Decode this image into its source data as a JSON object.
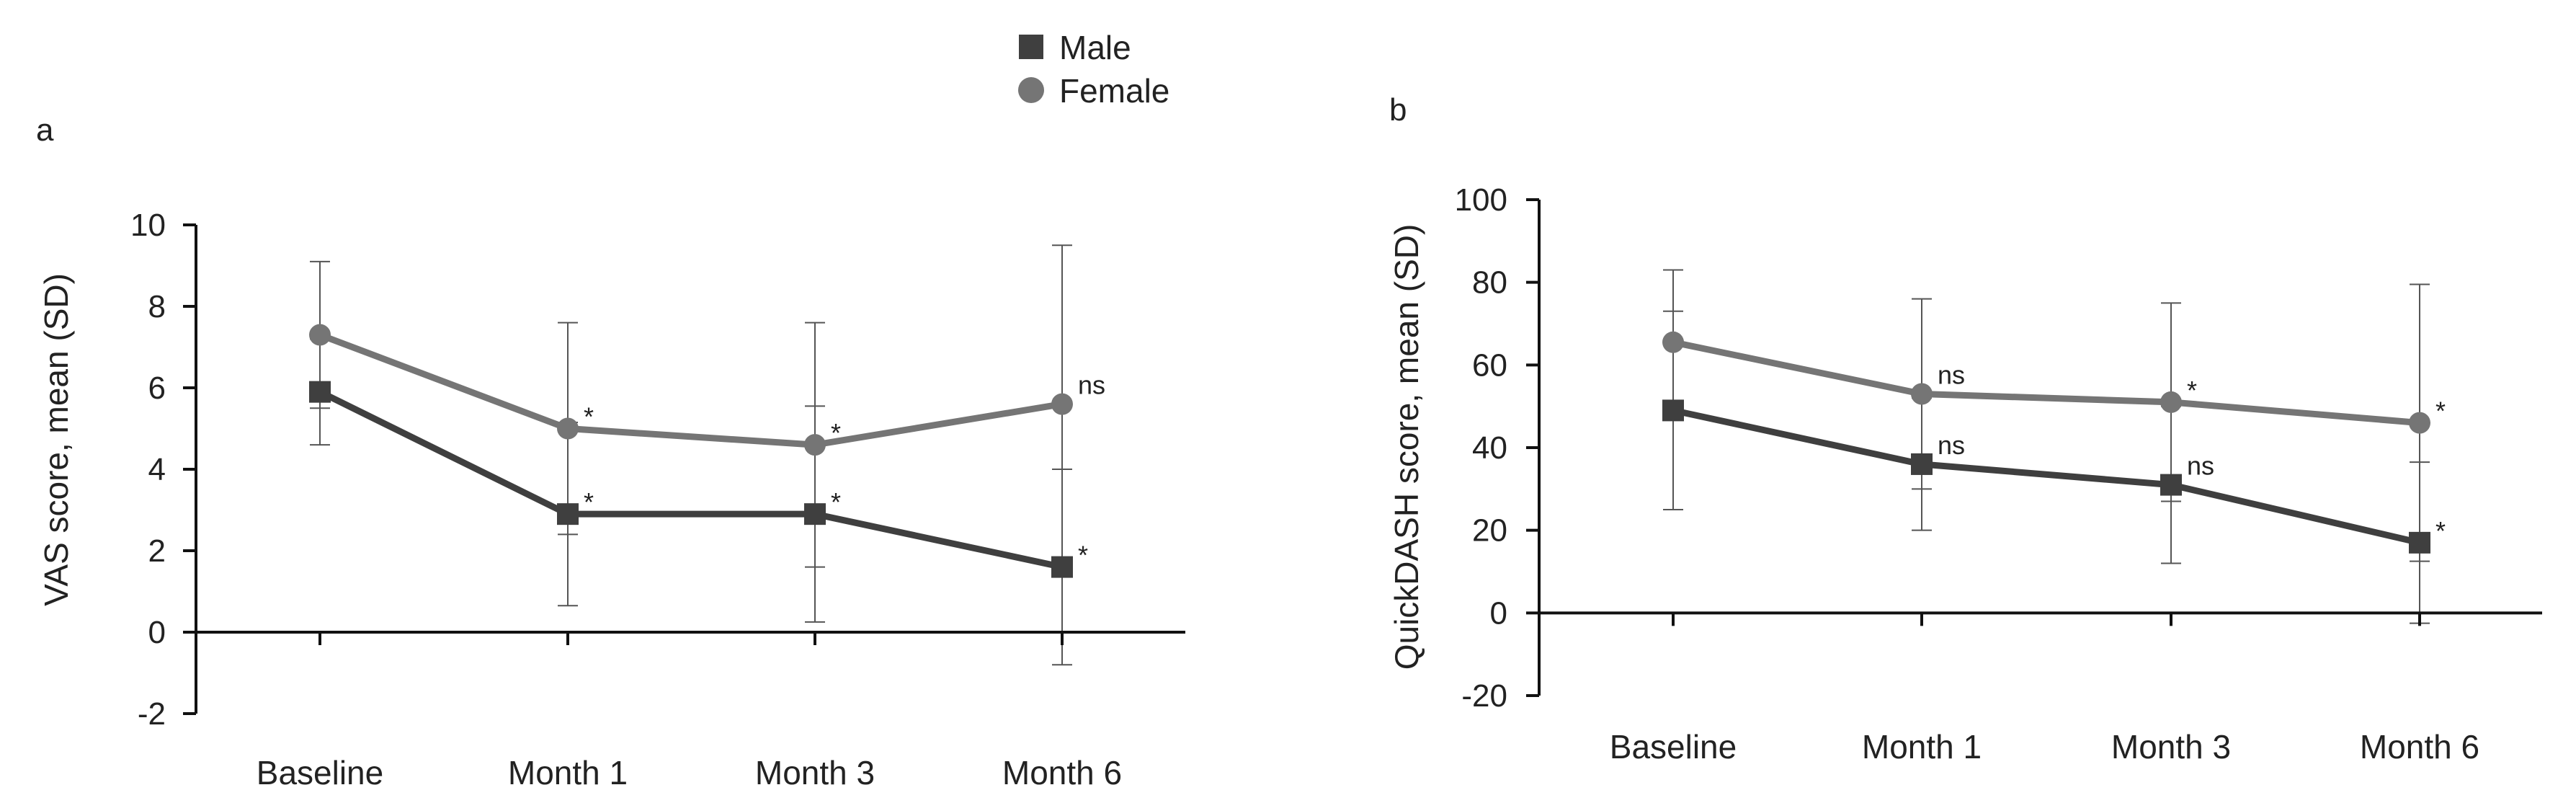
{
  "legend": {
    "items": [
      {
        "name": "Male",
        "marker": "square",
        "color": "#3f3f3f"
      },
      {
        "name": "Female",
        "marker": "circle",
        "color": "#757575"
      }
    ]
  },
  "chart_data": [
    {
      "panel": "a",
      "type": "line",
      "title": "",
      "xlabel": "",
      "ylabel": "VAS score, mean (SD)",
      "categories": [
        "Baseline",
        "Month 1",
        "Month 3",
        "Month 6"
      ],
      "ylim": [
        -2,
        10
      ],
      "yticks": [
        -2,
        0,
        2,
        4,
        6,
        8,
        10
      ],
      "grid": false,
      "legend_position": "top-center",
      "series": [
        {
          "name": "Male",
          "marker": "square",
          "color": "#3f3f3f",
          "values": [
            5.9,
            2.9,
            2.9,
            1.6
          ],
          "sd": [
            1.3,
            2.25,
            2.65,
            2.4
          ],
          "annotations": [
            "",
            "*",
            "*",
            "*"
          ]
        },
        {
          "name": "Female",
          "marker": "circle",
          "color": "#757575",
          "values": [
            7.3,
            5.0,
            4.6,
            5.6
          ],
          "sd": [
            1.8,
            2.6,
            3.0,
            3.9
          ],
          "annotations": [
            "",
            "*",
            "*",
            "ns"
          ]
        }
      ]
    },
    {
      "panel": "b",
      "type": "line",
      "title": "",
      "xlabel": "",
      "ylabel": "QuickDASH score, mean (SD)",
      "categories": [
        "Baseline",
        "Month 1",
        "Month 3",
        "Month 6"
      ],
      "ylim": [
        -20,
        100
      ],
      "yticks": [
        -20,
        0,
        20,
        40,
        60,
        80,
        100
      ],
      "grid": false,
      "legend_position": "top-center",
      "series": [
        {
          "name": "Male",
          "marker": "square",
          "color": "#3f3f3f",
          "values": [
            49,
            36,
            31,
            17
          ],
          "sd": [
            24,
            16,
            19,
            19.5
          ],
          "annotations": [
            "",
            "ns",
            "ns",
            "*"
          ]
        },
        {
          "name": "Female",
          "marker": "circle",
          "color": "#757575",
          "values": [
            65.5,
            53,
            51,
            46
          ],
          "sd": [
            17.5,
            23,
            24,
            33.5
          ],
          "annotations": [
            "",
            "ns",
            "*",
            "*"
          ]
        }
      ]
    }
  ]
}
